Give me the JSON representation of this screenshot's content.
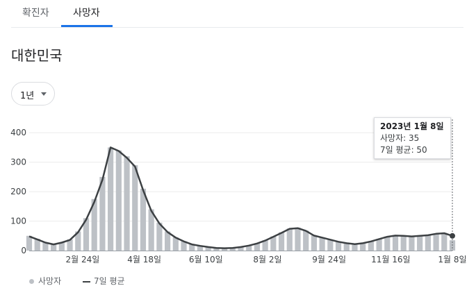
{
  "tabs": [
    {
      "label": "확진자",
      "active": false
    },
    {
      "label": "사망자",
      "active": true
    }
  ],
  "region": "대한민국",
  "range_selector": {
    "label": "1년"
  },
  "tooltip": {
    "date": "2023년 1월 8일",
    "deaths_label": "사망자: 35",
    "avg_label": "7일 평균: 50"
  },
  "legend": {
    "bars": "사망자",
    "line": "7일 평균"
  },
  "colors": {
    "bars": "#bdc1c6",
    "line": "#3c4043",
    "accent": "#1a73e8"
  },
  "chart_data": {
    "type": "bar",
    "x_range": [
      "2022-01-09",
      "2023-01-08"
    ],
    "ylim": [
      0,
      450
    ],
    "y_ticks": [
      0,
      100,
      200,
      300,
      400
    ],
    "y_tick_labels": [
      "0",
      "100",
      "200",
      "300",
      "400"
    ],
    "x_ticks": [
      {
        "date": "2022-02-24",
        "label": "2월 24일"
      },
      {
        "date": "2022-04-18",
        "label": "4월 18일"
      },
      {
        "date": "2022-06-10",
        "label": "6월 10일"
      },
      {
        "date": "2022-08-02",
        "label": "8월 2일"
      },
      {
        "date": "2022-09-24",
        "label": "9월 24일"
      },
      {
        "date": "2022-11-16",
        "label": "11월 16일"
      },
      {
        "date": "2023-01-08",
        "label": "1월 8일"
      }
    ],
    "series": [
      {
        "name": "사망자",
        "kind": "bar",
        "points": [
          [
            "2022-01-09",
            50
          ],
          [
            "2022-01-16",
            40
          ],
          [
            "2022-01-23",
            28
          ],
          [
            "2022-01-30",
            22
          ],
          [
            "2022-02-06",
            28
          ],
          [
            "2022-02-13",
            38
          ],
          [
            "2022-02-20",
            65
          ],
          [
            "2022-02-27",
            110
          ],
          [
            "2022-03-06",
            175
          ],
          [
            "2022-03-13",
            250
          ],
          [
            "2022-03-20",
            350
          ],
          [
            "2022-03-27",
            340
          ],
          [
            "2022-04-03",
            320
          ],
          [
            "2022-04-10",
            290
          ],
          [
            "2022-04-17",
            210
          ],
          [
            "2022-04-24",
            140
          ],
          [
            "2022-05-01",
            95
          ],
          [
            "2022-05-08",
            65
          ],
          [
            "2022-05-15",
            45
          ],
          [
            "2022-05-22",
            32
          ],
          [
            "2022-05-29",
            22
          ],
          [
            "2022-06-05",
            17
          ],
          [
            "2022-06-12",
            12
          ],
          [
            "2022-06-19",
            9
          ],
          [
            "2022-06-26",
            8
          ],
          [
            "2022-07-03",
            9
          ],
          [
            "2022-07-10",
            12
          ],
          [
            "2022-07-17",
            17
          ],
          [
            "2022-07-24",
            25
          ],
          [
            "2022-07-31",
            35
          ],
          [
            "2022-08-07",
            48
          ],
          [
            "2022-08-14",
            62
          ],
          [
            "2022-08-21",
            75
          ],
          [
            "2022-08-28",
            78
          ],
          [
            "2022-09-04",
            68
          ],
          [
            "2022-09-11",
            52
          ],
          [
            "2022-09-18",
            45
          ],
          [
            "2022-09-25",
            38
          ],
          [
            "2022-10-02",
            30
          ],
          [
            "2022-10-09",
            25
          ],
          [
            "2022-10-16",
            22
          ],
          [
            "2022-10-23",
            25
          ],
          [
            "2022-10-30",
            32
          ],
          [
            "2022-11-06",
            40
          ],
          [
            "2022-11-13",
            48
          ],
          [
            "2022-11-20",
            52
          ],
          [
            "2022-11-27",
            50
          ],
          [
            "2022-12-04",
            48
          ],
          [
            "2022-12-11",
            50
          ],
          [
            "2022-12-18",
            53
          ],
          [
            "2022-12-25",
            58
          ],
          [
            "2023-01-01",
            60
          ],
          [
            "2023-01-08",
            35
          ]
        ]
      },
      {
        "name": "7일 평균",
        "kind": "line",
        "points": [
          [
            "2022-01-09",
            48
          ],
          [
            "2022-01-16",
            38
          ],
          [
            "2022-01-23",
            27
          ],
          [
            "2022-01-30",
            21
          ],
          [
            "2022-02-06",
            27
          ],
          [
            "2022-02-13",
            36
          ],
          [
            "2022-02-20",
            62
          ],
          [
            "2022-02-27",
            105
          ],
          [
            "2022-03-06",
            165
          ],
          [
            "2022-03-13",
            240
          ],
          [
            "2022-03-20",
            350
          ],
          [
            "2022-03-27",
            338
          ],
          [
            "2022-04-03",
            315
          ],
          [
            "2022-04-10",
            285
          ],
          [
            "2022-04-17",
            205
          ],
          [
            "2022-04-24",
            135
          ],
          [
            "2022-05-01",
            92
          ],
          [
            "2022-05-08",
            63
          ],
          [
            "2022-05-15",
            44
          ],
          [
            "2022-05-22",
            31
          ],
          [
            "2022-05-29",
            21
          ],
          [
            "2022-06-05",
            16
          ],
          [
            "2022-06-12",
            12
          ],
          [
            "2022-06-19",
            9
          ],
          [
            "2022-06-26",
            8
          ],
          [
            "2022-07-03",
            9
          ],
          [
            "2022-07-10",
            12
          ],
          [
            "2022-07-17",
            17
          ],
          [
            "2022-07-24",
            24
          ],
          [
            "2022-07-31",
            34
          ],
          [
            "2022-08-07",
            47
          ],
          [
            "2022-08-14",
            60
          ],
          [
            "2022-08-21",
            74
          ],
          [
            "2022-08-28",
            76
          ],
          [
            "2022-09-04",
            67
          ],
          [
            "2022-09-11",
            51
          ],
          [
            "2022-09-18",
            44
          ],
          [
            "2022-09-25",
            37
          ],
          [
            "2022-10-02",
            30
          ],
          [
            "2022-10-09",
            25
          ],
          [
            "2022-10-16",
            22
          ],
          [
            "2022-10-23",
            25
          ],
          [
            "2022-10-30",
            31
          ],
          [
            "2022-11-06",
            39
          ],
          [
            "2022-11-13",
            47
          ],
          [
            "2022-11-20",
            51
          ],
          [
            "2022-11-27",
            50
          ],
          [
            "2022-12-04",
            48
          ],
          [
            "2022-12-11",
            50
          ],
          [
            "2022-12-18",
            52
          ],
          [
            "2022-12-25",
            57
          ],
          [
            "2023-01-01",
            59
          ],
          [
            "2023-01-08",
            50
          ]
        ]
      }
    ],
    "highlight": {
      "date": "2023-01-08",
      "value": 50
    },
    "legend_position": "bottom-left",
    "grid": true
  }
}
